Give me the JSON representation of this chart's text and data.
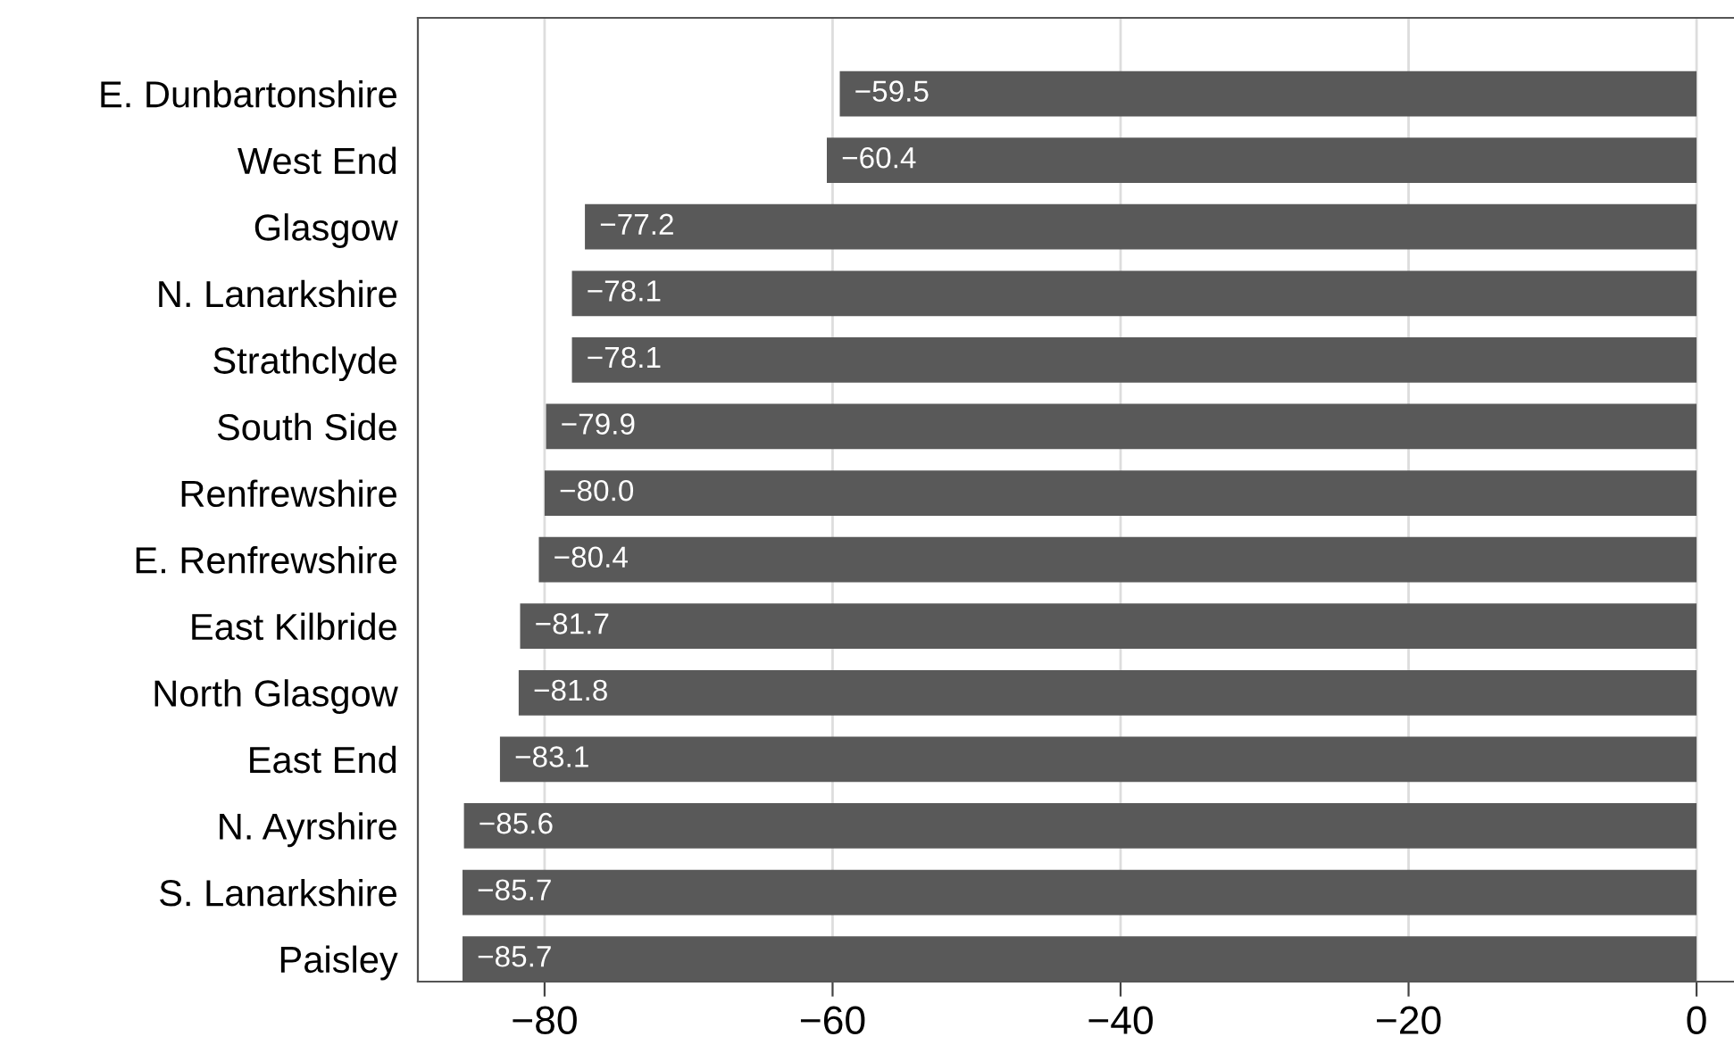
{
  "chart_data": {
    "type": "bar",
    "orientation": "horizontal",
    "categories": [
      "E. Dunbartonshire",
      "West End",
      "Glasgow",
      "N. Lanarkshire",
      "Strathclyde",
      "South Side",
      "Renfrewshire",
      "E. Renfrewshire",
      "East Kilbride",
      "North Glasgow",
      "East End",
      "N. Ayrshire",
      "S. Lanarkshire",
      "Paisley"
    ],
    "values": [
      -59.5,
      -60.4,
      -77.2,
      -78.1,
      -78.1,
      -79.9,
      -80.0,
      -80.4,
      -81.7,
      -81.8,
      -83.1,
      -85.6,
      -85.7,
      -85.7
    ],
    "value_labels": [
      "−59.5",
      "−60.4",
      "−77.2",
      "−78.1",
      "−78.1",
      "−79.9",
      "−80.0",
      "−80.4",
      "−81.7",
      "−81.8",
      "−83.1",
      "−85.6",
      "−85.7",
      "−85.7"
    ],
    "color": "#595959",
    "xlim": [
      -88.8,
      2.6
    ],
    "xticks": [
      {
        "value": -80,
        "label": "−80"
      },
      {
        "value": -60,
        "label": "−60"
      },
      {
        "value": -40,
        "label": "−40"
      },
      {
        "value": -20,
        "label": "−20"
      },
      0
    ],
    "grid": "x"
  }
}
